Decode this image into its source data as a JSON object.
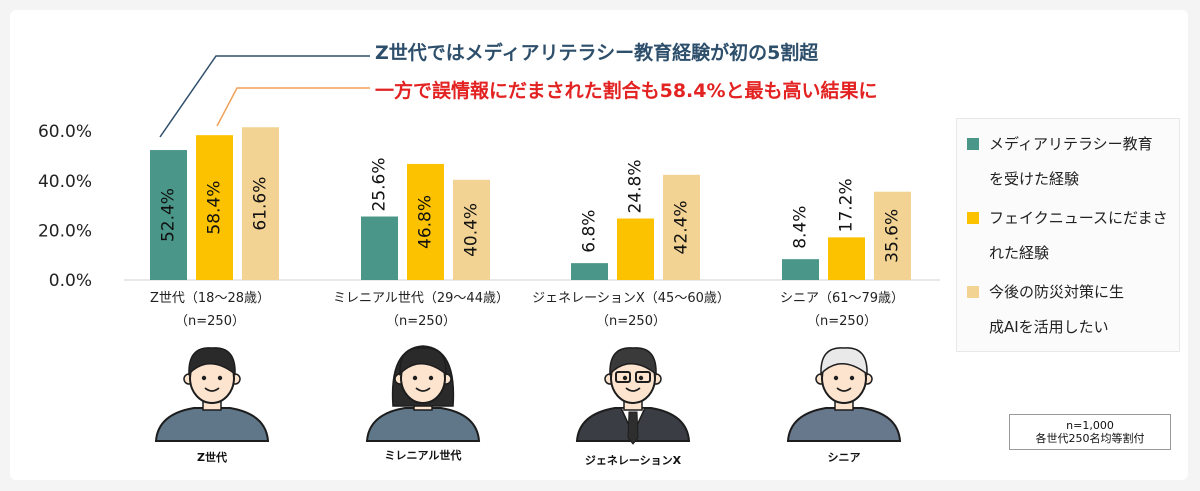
{
  "headline": {
    "line1": "Z世代ではメディアリテラシー教育経験が初の5割超",
    "line2": "一方で誤情報にだまされた割合も58.4%と最も高い結果に"
  },
  "colors": {
    "teal": "#4a9688",
    "yellow": "#fcc200",
    "beige": "#f3d394",
    "teal_line": "#2f4f6b",
    "orange_line": "#f0a25a"
  },
  "chart_data": {
    "type": "bar",
    "categories": [
      {
        "name": "Z世代（18～28歳）",
        "n": "（n=250）",
        "person": "Z世代"
      },
      {
        "name": "ミレニアル世代（29～44歳）",
        "n": "（n=250）",
        "person": "ミレニアル世代"
      },
      {
        "name": "ジェネレーションX（45～60歳）",
        "n": "（n=250）",
        "person": "ジェネレーションX"
      },
      {
        "name": "シニア（61～79歳）",
        "n": "（n=250）",
        "person": "シニア"
      }
    ],
    "series": [
      {
        "name": "メディアリテラシー教育を受けた経験",
        "color": "#4a9688",
        "values": [
          52.4,
          25.6,
          6.8,
          8.4
        ],
        "labels": [
          "52.4%",
          "25.6%",
          "6.8%",
          "8.4%"
        ]
      },
      {
        "name": "フェイクニュースにだまされた経験",
        "color": "#fcc200",
        "values": [
          58.4,
          46.8,
          24.8,
          17.2
        ],
        "labels": [
          "58.4%",
          "46.8%",
          "24.8%",
          "17.2%"
        ]
      },
      {
        "name": "今後の防災対策に生成AIを活用したい",
        "color": "#f3d394",
        "values": [
          61.6,
          40.4,
          42.4,
          35.6
        ],
        "labels": [
          "61.6%",
          "40.4%",
          "42.4%",
          "35.6%"
        ]
      }
    ],
    "yticks": [
      "0.0%",
      "20.0%",
      "40.0%",
      "60.0%"
    ],
    "ylim": [
      0,
      62
    ],
    "grid": false,
    "legend": "right"
  },
  "legend": {
    "items": [
      {
        "line1": "メディアリテラシー教育",
        "line2": "を受けた経験",
        "color": "#4a9688"
      },
      {
        "line1": "フェイクニュースにだまさ",
        "line2": "れた経験",
        "color": "#fcc200"
      },
      {
        "line1": "今後の防災対策に生",
        "line2": "成AIを活用したい",
        "color": "#f3d394"
      }
    ]
  },
  "note": {
    "line1": "n=1,000",
    "line2": "各世代250名均等割付"
  }
}
